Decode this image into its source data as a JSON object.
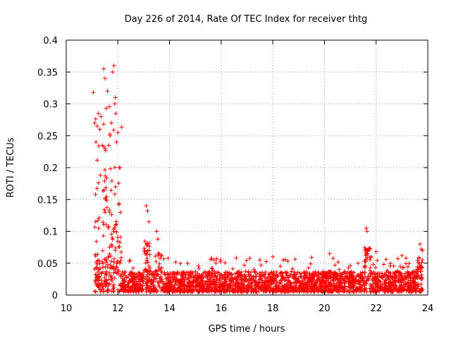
{
  "chart_data": {
    "type": "scatter",
    "title": "Day 226 of 2014, Rate Of TEC Index for receiver thtg",
    "xlabel": "GPS time / hours",
    "ylabel": "ROTI / TECUs",
    "xlim": [
      10,
      24
    ],
    "ylim": [
      0,
      0.4
    ],
    "xticks": [
      10,
      12,
      14,
      16,
      18,
      20,
      22,
      24
    ],
    "xtick_labels": [
      "10",
      "12",
      "14",
      "16",
      "18",
      "20",
      "22",
      "24"
    ],
    "yticks": [
      0,
      0.05,
      0.1,
      0.15,
      0.2,
      0.25,
      0.3,
      0.35,
      0.4
    ],
    "ytick_labels": [
      "0",
      "0.05",
      "0.1",
      "0.15",
      "0.2",
      "0.25",
      "0.3",
      "0.35",
      "0.4"
    ],
    "grid": true,
    "marker": "+",
    "color": "#ff0000",
    "data_span_hours": [
      11.1,
      23.8
    ],
    "series": [
      {
        "name": "ROTI",
        "x": [
          11.05,
          11.1,
          11.15,
          11.2,
          11.25,
          11.3,
          11.35,
          11.4,
          11.45,
          11.5,
          11.55,
          11.6,
          11.65,
          11.7,
          11.75,
          11.8,
          11.85,
          11.88,
          11.9,
          11.92,
          11.95,
          12.0,
          12.05,
          12.1,
          13.1,
          13.15,
          13.2,
          13.5,
          13.55,
          13.6,
          15.8,
          16.9,
          17.5,
          18.0,
          18.4,
          20.2,
          21.62,
          21.65,
          21.7,
          22.0,
          22.3,
          23.0,
          23.7,
          23.75,
          23.8
        ],
        "y": [
          0.318,
          0.27,
          0.24,
          0.265,
          0.285,
          0.26,
          0.28,
          0.235,
          0.355,
          0.34,
          0.293,
          0.32,
          0.235,
          0.25,
          0.27,
          0.35,
          0.36,
          0.3,
          0.31,
          0.285,
          0.24,
          0.255,
          0.2,
          0.13,
          0.14,
          0.132,
          0.115,
          0.1,
          0.088,
          0.065,
          0.05,
          0.047,
          0.055,
          0.06,
          0.055,
          0.065,
          0.105,
          0.1,
          0.07,
          0.068,
          0.048,
          0.062,
          0.08,
          0.072,
          0.07
        ]
      }
    ]
  }
}
